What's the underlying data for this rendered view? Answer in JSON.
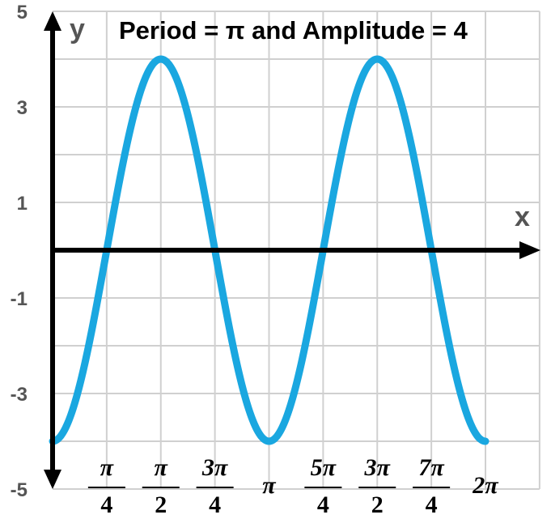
{
  "chart_data": {
    "type": "line",
    "title": "Period = π and Amplitude = 4",
    "xlabel": "x",
    "ylabel": "y",
    "xlim": [
      -0.25,
      2.25
    ],
    "ylim": [
      -5,
      5
    ],
    "x_unit": "π",
    "grid": true,
    "legend": "none",
    "line_color": "#1aa7e0",
    "axis_color": "#000000",
    "grid_color": "#d0d0d0",
    "series": [
      {
        "function": "y = -4 cos(2x)",
        "x_range_in_pi": [
          0,
          2
        ],
        "x": [
          0,
          0.25,
          0.5,
          0.75,
          1,
          1.25,
          1.5,
          1.75,
          2
        ],
        "values": [
          -4,
          0,
          4,
          0,
          -4,
          0,
          4,
          0,
          -4
        ]
      }
    ],
    "y_ticks": [
      {
        "value": 5,
        "label": "5"
      },
      {
        "value": 3,
        "label": "3"
      },
      {
        "value": 1,
        "label": "1"
      },
      {
        "value": -1,
        "label": "-1"
      },
      {
        "value": -3,
        "label": "-3"
      },
      {
        "value": -5,
        "label": "-5"
      }
    ],
    "x_ticks": [
      {
        "value": 0.25,
        "num": "π",
        "den": "4"
      },
      {
        "value": 0.5,
        "num": "π",
        "den": "2"
      },
      {
        "value": 0.75,
        "num": "3π",
        "den": "4"
      },
      {
        "value": 1,
        "num": "π",
        "den": ""
      },
      {
        "value": 1.25,
        "num": "5π",
        "den": "4"
      },
      {
        "value": 1.5,
        "num": "3π",
        "den": "2"
      },
      {
        "value": 1.75,
        "num": "7π",
        "den": "4"
      },
      {
        "value": 2,
        "num": "2π",
        "den": ""
      }
    ]
  }
}
